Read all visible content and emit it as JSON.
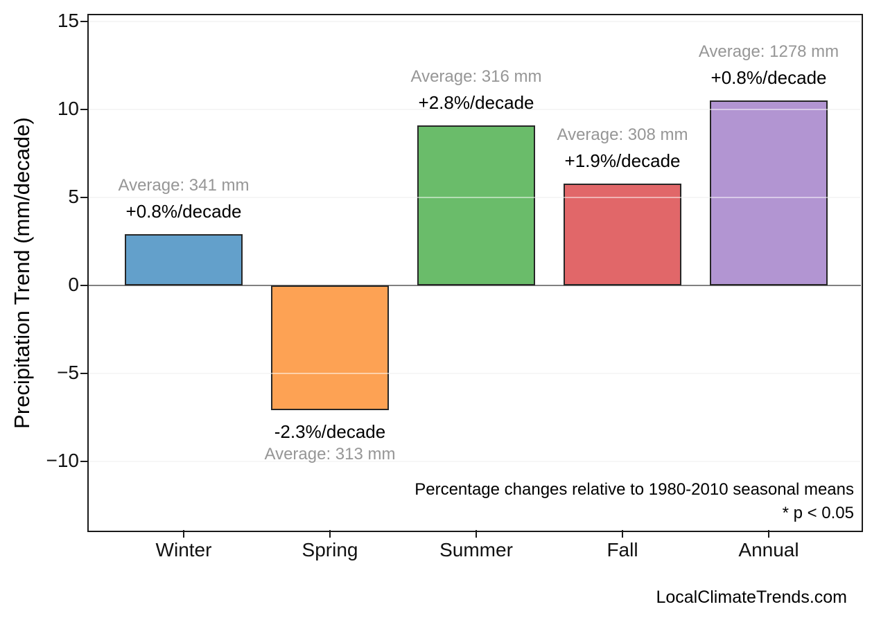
{
  "chart_data": {
    "type": "bar",
    "title": "",
    "xlabel": "",
    "ylabel": "Precipitation Trend (mm/decade)",
    "categories": [
      "Winter",
      "Spring",
      "Summer",
      "Fall",
      "Annual"
    ],
    "values": [
      2.9,
      -7.1,
      9.1,
      5.8,
      10.5
    ],
    "bar_colors": [
      "#63A0CB",
      "#FDA254",
      "#6ABC6A",
      "#E16769",
      "#B295D2"
    ],
    "average_labels": [
      "Average: 341 mm",
      "Average: 313 mm",
      "Average: 316 mm",
      "Average: 308 mm",
      "Average: 1278 mm"
    ],
    "trend_labels": [
      "+0.8%/decade",
      "-2.3%/decade",
      "+2.8%/decade",
      "+1.9%/decade",
      "+0.8%/decade"
    ],
    "averages_mm": [
      341,
      313,
      316,
      308,
      1278
    ],
    "trend_pct_per_decade": [
      0.8,
      -2.3,
      2.8,
      1.9,
      0.8
    ],
    "ylim": [
      -13.9,
      15.4
    ],
    "yticks": [
      -10,
      -5,
      0,
      5,
      10,
      15
    ],
    "ytick_labels": [
      "−10",
      "−5",
      "0",
      "5",
      "10",
      "15"
    ],
    "grid": "horizontal",
    "legend": false,
    "notes": [
      "Percentage changes relative to 1980-2010 seasonal means",
      "* p < 0.05"
    ],
    "styles": {
      "edge_color": "#262626",
      "spine_color": "#1a1a1a",
      "zero_line_color": "#808080",
      "grid_color": "#ececec",
      "annotation_gray": "#969696",
      "text_color": "#000000"
    }
  },
  "footer": {
    "watermark": "LocalClimateTrends.com"
  }
}
